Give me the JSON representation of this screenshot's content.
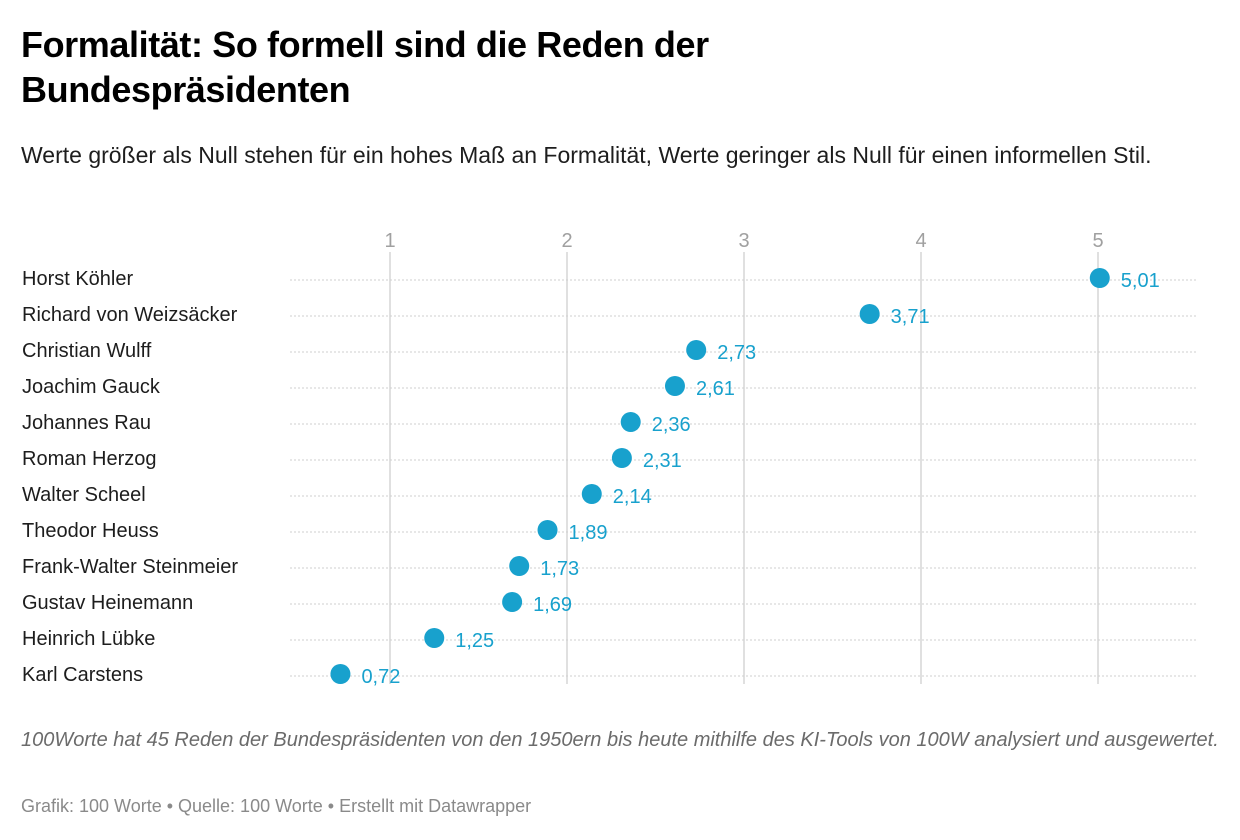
{
  "header": {
    "title": "Formalität: So formell sind die Reden der Bundespräsidenten",
    "subtitle": "Werte größer als Null stehen für ein hohes Maß an Formalität, Werte geringer als Null für einen informellen Stil."
  },
  "footer": {
    "note": "100Worte hat 45 Reden der Bundespräsidenten von den 1950ern bis heute mithilfe des KI-Tools von 100W analysiert und ausgewertet.",
    "byline": "Grafik: 100 Worte • Quelle: 100 Worte • Erstellt mit Datawrapper"
  },
  "colors": {
    "dot": "#18a1cd",
    "gridline": "#e0e0e0",
    "row_guide": "#cfcfcf",
    "tick_text": "#a0a0a0"
  },
  "chart_data": {
    "type": "scatter",
    "subtype": "dot-plot",
    "title": "Formalität: So formell sind die Reden der Bundespräsidenten",
    "subtitle": "Werte größer als Null stehen für ein hohes Maß an Formalität, Werte geringer als Null für einen informellen Stil.",
    "xlabel": "",
    "ylabel": "",
    "x_axis_position": "top",
    "xlim": [
      0,
      5.6
    ],
    "xticks": [
      1,
      2,
      3,
      4,
      5
    ],
    "xtick_labels": [
      "1",
      "2",
      "3",
      "4",
      "5"
    ],
    "grid": true,
    "legend": "none",
    "decimal_separator": ",",
    "categories": [
      "Horst Köhler",
      "Richard von Weizsäcker",
      "Christian Wulff",
      "Joachim Gauck",
      "Johannes Rau",
      "Roman Herzog",
      "Walter Scheel",
      "Theodor Heuss",
      "Frank-Walter Steinmeier",
      "Gustav Heinemann",
      "Heinrich Lübke",
      "Karl Carstens"
    ],
    "values": [
      5.01,
      3.71,
      2.73,
      2.61,
      2.36,
      2.31,
      2.14,
      1.89,
      1.73,
      1.69,
      1.25,
      0.72
    ],
    "value_labels": [
      "5,01",
      "3,71",
      "2,73",
      "2,61",
      "2,36",
      "2,31",
      "2,14",
      "1,89",
      "1,73",
      "1,69",
      "1,25",
      "0,72"
    ]
  }
}
